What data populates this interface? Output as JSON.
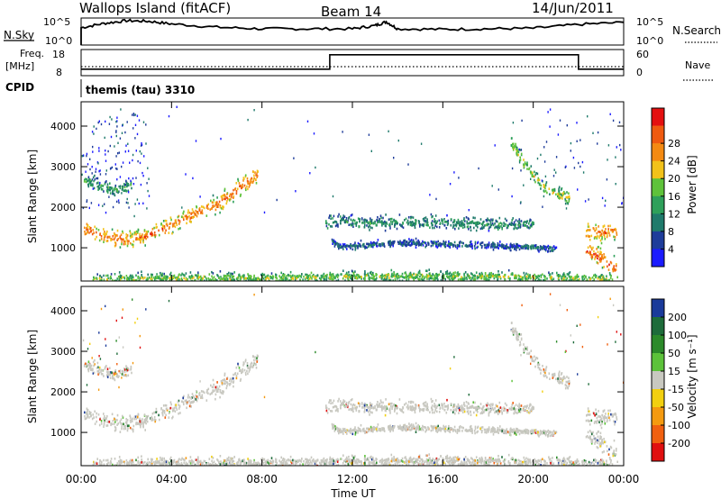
{
  "header": {
    "station": "Wallops Island (fitACF)",
    "beam": "Beam 14",
    "date": "14/Jun/2011"
  },
  "strips": {
    "nsky_label": "N.Sky",
    "nsky_ticks": [
      "10^5",
      "10^0"
    ],
    "nsearch_label": "N.Search",
    "nsearch_ticks": [
      "10^5",
      "10^0"
    ],
    "freq_label_top": "Freq.",
    "freq_label_unit": "[MHz]",
    "freq_ticks": [
      "18",
      "8"
    ],
    "nave_label": "Nave",
    "nave_ticks": [
      "60",
      "0"
    ],
    "cpid_label": "CPID",
    "cpid_value": "themis (tau) 3310"
  },
  "colors": {
    "power_scale": [
      "#1b1bff",
      "#1e3c9a",
      "#1f7a6b",
      "#2ea05a",
      "#5ec23a",
      "#f2c21a",
      "#f48a12",
      "#ef5a10",
      "#e41010"
    ],
    "velocity_scale": [
      "#1a3a9a",
      "#1e6c3a",
      "#2c8a2a",
      "#5cc23a",
      "#c8c8c0",
      "#f2d010",
      "#f49a10",
      "#f06010",
      "#e01010"
    ],
    "ground_scatter": "#c8c8c0"
  },
  "chart_data": [
    {
      "type": "line",
      "panel": "N.Sky / N.Search",
      "title": "Wallops Island (fitACF)   Beam 14   14/Jun/2011",
      "x_ticks": [
        "00:00",
        "04:00",
        "08:00",
        "12:00",
        "16:00",
        "20:00",
        "00:00"
      ],
      "x_hours": [
        0,
        1,
        2,
        3,
        4,
        6,
        8,
        10,
        12,
        13,
        13.5,
        14,
        16,
        18,
        20,
        22,
        24
      ],
      "series": [
        {
          "name": "N.Sky",
          "values": [
            3.2,
            4.0,
            4.5,
            4.4,
            3.9,
            3.3,
            3.0,
            3.0,
            3.0,
            3.6,
            4.3,
            3.0,
            2.9,
            3.0,
            3.1,
            3.8,
            4.2
          ]
        }
      ],
      "ylim": [
        0,
        5
      ],
      "y_scale": "log"
    },
    {
      "type": "line",
      "panel": "Freq / Nave",
      "x_hours": [
        0,
        11,
        11,
        22,
        22,
        24
      ],
      "series": [
        {
          "name": "Freq.",
          "values": [
            10.5,
            10.5,
            16,
            16,
            10.5,
            10.5
          ]
        },
        {
          "name": "Nave",
          "values": [
            20,
            20,
            20,
            20,
            20,
            20
          ]
        }
      ],
      "ylim": [
        8,
        18
      ]
    },
    {
      "type": "heatmap",
      "panel": "Power",
      "xlabel": "Time UT",
      "ylabel": "Slant Range [km]",
      "xlim": [
        0,
        24
      ],
      "ylim": [
        180,
        4600
      ],
      "y_ticks": [
        "1000",
        "2000",
        "3000",
        "4000"
      ],
      "colorbar_label": "Power [dB]",
      "colorbar_ticks": [
        "4",
        "8",
        "12",
        "16",
        "20",
        "24",
        "28"
      ],
      "bands": [
        {
          "t": [
            0.1,
            1.0,
            2.0,
            3.0,
            4.0,
            5.0,
            6.0,
            7.0,
            7.8
          ],
          "range": [
            1500,
            1300,
            1200,
            1350,
            1600,
            1850,
            2100,
            2500,
            2850
          ],
          "width": 200,
          "level": 0.7
        },
        {
          "t": [
            0.1,
            0.8,
            1.5,
            2.2
          ],
          "range": [
            2700,
            2550,
            2450,
            2550
          ],
          "width": 150,
          "level": 0.35
        },
        {
          "t": [
            0.5,
            3.0,
            6.0,
            9.0,
            12.0,
            16.0,
            20.0,
            23.5
          ],
          "range": [
            250,
            270,
            280,
            280,
            320,
            330,
            300,
            260
          ],
          "width": 120,
          "level": 0.45
        },
        {
          "t": [
            10.8,
            11.4,
            12.0,
            14.0,
            16.0,
            18.0,
            20.0
          ],
          "range": [
            1650,
            1700,
            1650,
            1650,
            1650,
            1600,
            1600
          ],
          "width": 150,
          "level": 0.3
        },
        {
          "t": [
            11.0,
            11.5,
            12.5,
            14.5,
            17.0,
            19.5,
            21.0
          ],
          "range": [
            1200,
            1050,
            1100,
            1150,
            1100,
            1050,
            1000
          ],
          "width": 80,
          "level": 0.2
        },
        {
          "t": [
            19.0,
            19.6,
            20.3,
            21.0,
            21.6
          ],
          "range": [
            3600,
            3100,
            2600,
            2350,
            2250
          ],
          "width": 150,
          "level": 0.5
        },
        {
          "t": [
            22.3,
            23.0,
            23.7
          ],
          "range": [
            1400,
            1400,
            1450
          ],
          "width": 200,
          "level": 0.7
        },
        {
          "t": [
            22.3,
            23.0,
            23.7
          ],
          "range": [
            1000,
            750,
            500
          ],
          "width": 200,
          "level": 0.75
        }
      ]
    },
    {
      "type": "heatmap",
      "panel": "Velocity",
      "xlabel": "Time UT",
      "ylabel": "Slant Range [km]",
      "xlim": [
        0,
        24
      ],
      "ylim": [
        180,
        4600
      ],
      "y_ticks": [
        "1000",
        "2000",
        "3000",
        "4000"
      ],
      "colorbar_label": "Velocity [m s⁻¹]",
      "colorbar_ticks": [
        "200",
        "100",
        "50",
        "15",
        "-15",
        "-50",
        "-100",
        "-200"
      ],
      "note": "Mostly ground scatter (grey) following the same range bands as Power."
    }
  ]
}
